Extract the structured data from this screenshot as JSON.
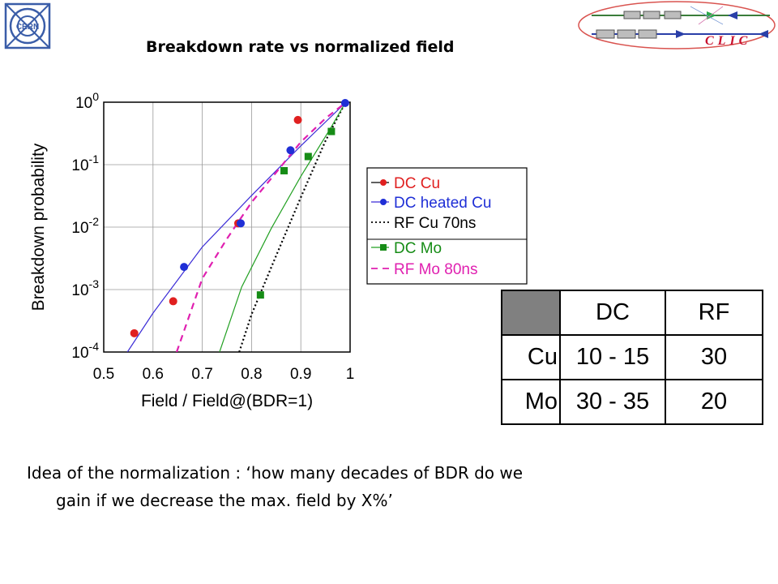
{
  "header": {
    "title": "Breakdown rate vs normalized field",
    "logo_left": "CERN",
    "logo_right": "CLIC"
  },
  "chart_data": {
    "type": "scatter",
    "title": "",
    "xlabel": "Field / Field@(BDR=1)",
    "ylabel": "Breakdown probability",
    "xlim": [
      0.5,
      1
    ],
    "ylim": [
      0.0001,
      1
    ],
    "yscale": "log",
    "grid": true,
    "legend_position": "right",
    "x_ticks": [
      "0.5",
      "0.6",
      "0.7",
      "0.8",
      "0.9",
      "1"
    ],
    "y_ticks": [
      {
        "base": "10",
        "exp": "0"
      },
      {
        "base": "10",
        "exp": "-1"
      },
      {
        "base": "10",
        "exp": "-2"
      },
      {
        "base": "10",
        "exp": "-3"
      },
      {
        "base": "10",
        "exp": "-4"
      }
    ],
    "series": [
      {
        "name": "DC Cu",
        "kind": "points",
        "marker": "circle",
        "color": "#e02020",
        "points": [
          [
            0.562,
            0.0002
          ],
          [
            0.641,
            0.00065
          ],
          [
            0.773,
            0.0115
          ],
          [
            0.894,
            0.52
          ]
        ]
      },
      {
        "name": "DC heated Cu",
        "kind": "points+line",
        "marker": "circle",
        "color": "#1f2fd6",
        "line_color": "#3a2bd6",
        "line_style": "solid",
        "points": [
          [
            0.663,
            0.0023
          ],
          [
            0.778,
            0.0115
          ],
          [
            0.879,
            0.17
          ],
          [
            0.99,
            0.97
          ]
        ],
        "line": [
          [
            0.548,
            0.0001
          ],
          [
            0.6,
            0.00042
          ],
          [
            0.7,
            0.0048
          ],
          [
            0.8,
            0.032
          ],
          [
            0.9,
            0.2
          ],
          [
            0.99,
            0.97
          ]
        ]
      },
      {
        "name": "RF Cu 70ns",
        "kind": "line",
        "color": "#000000",
        "line_style": "dotted",
        "line": [
          [
            0.775,
            0.0001
          ],
          [
            0.8,
            0.0004
          ],
          [
            0.85,
            0.0035
          ],
          [
            0.9,
            0.03
          ],
          [
            0.95,
            0.24
          ],
          [
            0.99,
            0.97
          ]
        ]
      },
      {
        "name": "DC Mo",
        "kind": "points+line",
        "marker": "square",
        "color": "#168c16",
        "line_color": "#22a022",
        "line_style": "solid",
        "points": [
          [
            0.818,
            0.00082
          ],
          [
            0.866,
            0.08
          ],
          [
            0.915,
            0.135
          ],
          [
            0.962,
            0.34
          ]
        ],
        "line": [
          [
            0.735,
            0.0001
          ],
          [
            0.78,
            0.0011
          ],
          [
            0.84,
            0.0095
          ],
          [
            0.9,
            0.065
          ],
          [
            0.96,
            0.38
          ],
          [
            0.99,
            0.97
          ]
        ]
      },
      {
        "name": "RF Mo 80ns",
        "kind": "line",
        "color": "#e020b0",
        "line_style": "dashed",
        "line": [
          [
            0.648,
            0.0001
          ],
          [
            0.7,
            0.0015
          ],
          [
            0.75,
            0.0065
          ],
          [
            0.8,
            0.025
          ],
          [
            0.85,
            0.075
          ],
          [
            0.9,
            0.23
          ],
          [
            0.95,
            0.55
          ],
          [
            0.99,
            0.97
          ]
        ]
      }
    ]
  },
  "table": {
    "headers": [
      "",
      "DC",
      "RF"
    ],
    "rows": [
      {
        "label": "Cu",
        "dc": "10 - 15",
        "rf": "30"
      },
      {
        "label": "Mo",
        "dc": "30 - 35",
        "rf": "20"
      }
    ]
  },
  "body": {
    "line1": "Idea of the normalization : ‘how many decades of BDR do we",
    "line2": "gain if we decrease the max. field by X%’"
  },
  "colors": {
    "cern_blue": "#3a5da8",
    "clic_red": "#c8102e",
    "clic_border": "#d9534f",
    "table_corner": "#808080"
  }
}
